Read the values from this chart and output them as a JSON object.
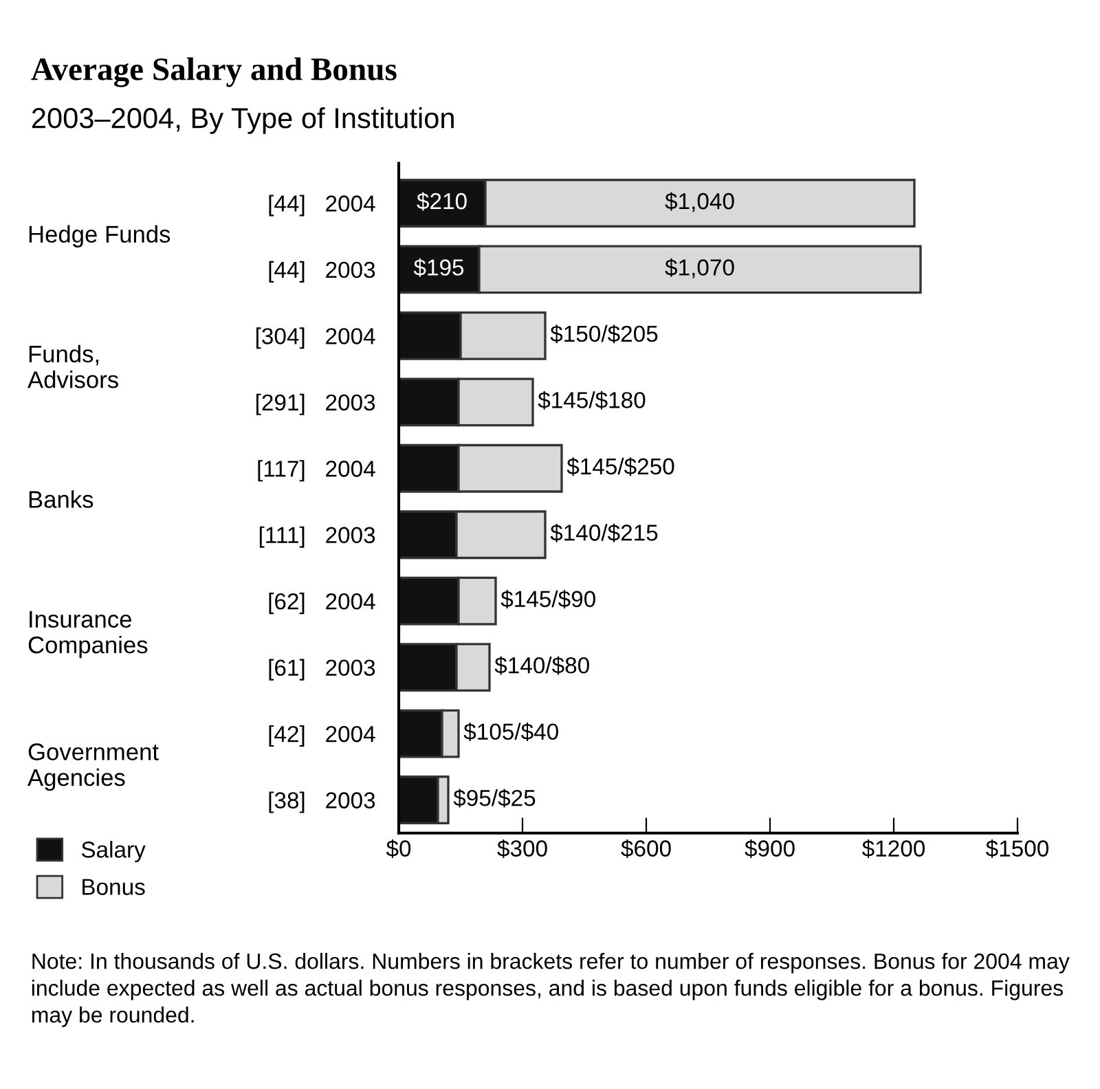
{
  "chart_data": {
    "type": "bar",
    "orientation": "horizontal",
    "stacked": true,
    "title": "Average Salary and Bonus",
    "subtitle": "2003–2004, By Type of Institution",
    "categories": [
      "[44]   2004",
      "[44]   2003",
      "[304]   2004",
      "[291]   2003",
      "[117]   2004",
      "[111]   2003",
      "[62]   2004",
      "[61]   2003",
      "[42]   2004",
      "[38]   2003"
    ],
    "series": [
      {
        "name": "Salary",
        "color": "#111111",
        "values": [
          210,
          195,
          150,
          145,
          145,
          140,
          145,
          140,
          105,
          95
        ],
        "value_labels": [
          "$210",
          "$195",
          null,
          null,
          null,
          null,
          null,
          null,
          null,
          null
        ]
      },
      {
        "name": "Bonus",
        "color": "#d9d9d9",
        "values": [
          1040,
          1070,
          205,
          180,
          250,
          215,
          90,
          80,
          40,
          25
        ],
        "value_labels": [
          "$1,040",
          "$1,070",
          "$150/$205",
          "$145/$180",
          "$145/$250",
          "$140/$215",
          "$145/$90",
          "$140/$80",
          "$105/$40",
          "$95/$25"
        ]
      }
    ],
    "xlim": [
      0,
      1500
    ],
    "xticks": [
      {
        "value": 0,
        "label": "$0"
      },
      {
        "value": 300,
        "label": "$300"
      },
      {
        "value": 600,
        "label": "$600"
      },
      {
        "value": 900,
        "label": "$900"
      },
      {
        "value": 1200,
        "label": "$1200"
      },
      {
        "value": 1500,
        "label": "$1500"
      }
    ],
    "grid": false,
    "legend": "bottom left",
    "annotations": [
      "Hedge Funds",
      "Funds,\nAdvisors",
      "Banks",
      "Insurance\nCompanies",
      "Government\nAgencies",
      "Note: In thousands of U.S. dollars. Numbers in brackets refer to number of responses. Bonus for 2004 may include expected as well as actual bonus responses, and is based upon funds eligible for a bonus. Figures may be rounded."
    ]
  }
}
